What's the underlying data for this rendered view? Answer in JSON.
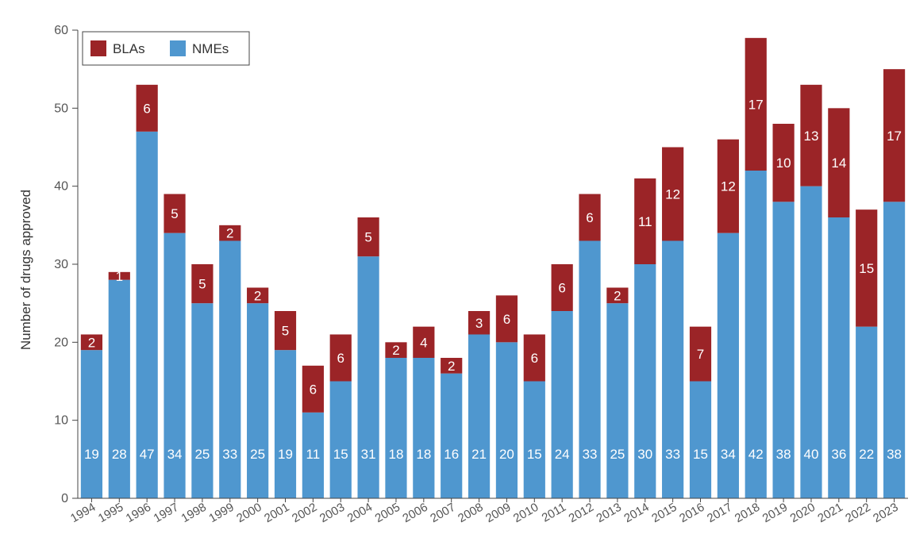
{
  "chart_data": {
    "type": "bar",
    "stacked": true,
    "title": "",
    "xlabel": "",
    "ylabel": "Number of drugs approved",
    "ylim": [
      0,
      60
    ],
    "yticks": [
      0,
      10,
      20,
      30,
      40,
      50,
      60
    ],
    "grid": false,
    "legend_position": "top-left",
    "categories": [
      "1994",
      "1995",
      "1996",
      "1997",
      "1998",
      "1999",
      "2000",
      "2001",
      "2002",
      "2003",
      "2004",
      "2005",
      "2006",
      "2007",
      "2008",
      "2009",
      "2010",
      "2011",
      "2012",
      "2013",
      "2014",
      "2015",
      "2016",
      "2017",
      "2018",
      "2019",
      "2020",
      "2021",
      "2022",
      "2023"
    ],
    "series": [
      {
        "name": "NMEs",
        "color": "#4f97cf",
        "values": [
          19,
          28,
          47,
          34,
          25,
          33,
          25,
          19,
          11,
          15,
          31,
          18,
          18,
          16,
          21,
          20,
          15,
          24,
          33,
          25,
          30,
          33,
          15,
          34,
          42,
          38,
          40,
          36,
          22,
          38
        ]
      },
      {
        "name": "BLAs",
        "color": "#9b2427",
        "values": [
          2,
          1,
          6,
          5,
          5,
          2,
          2,
          5,
          6,
          6,
          5,
          2,
          4,
          2,
          3,
          6,
          6,
          6,
          6,
          2,
          11,
          12,
          7,
          12,
          17,
          10,
          13,
          14,
          15,
          17
        ]
      }
    ],
    "legend": [
      {
        "label": "BLAs",
        "color": "#9b2427"
      },
      {
        "label": "NMEs",
        "color": "#4f97cf"
      }
    ]
  }
}
